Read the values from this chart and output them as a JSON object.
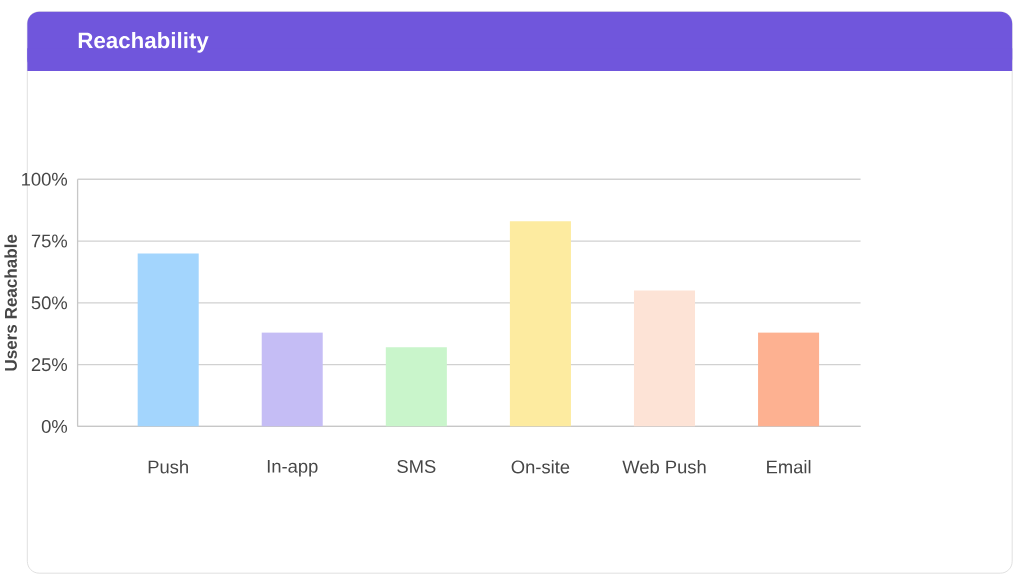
{
  "chart_data": {
    "type": "bar",
    "title": "Reachability",
    "ylabel": "Users Reachable",
    "categories": [
      "Push",
      "In-app",
      "SMS",
      "On-site",
      "Web Push",
      "Email"
    ],
    "values": [
      70,
      38,
      32,
      83,
      55,
      38
    ],
    "colors": [
      "#a3d5fd",
      "#c5bdf5",
      "#c9f5cb",
      "#fdeba0",
      "#fde3d6",
      "#fdb191"
    ],
    "ylim": [
      0,
      100
    ],
    "yticks": [
      {
        "value": 0,
        "label": "0%"
      },
      {
        "value": 25,
        "label": "25%"
      },
      {
        "value": 50,
        "label": "50%"
      },
      {
        "value": 75,
        "label": "75%"
      },
      {
        "value": 100,
        "label": "100%"
      }
    ],
    "grid": "y"
  }
}
